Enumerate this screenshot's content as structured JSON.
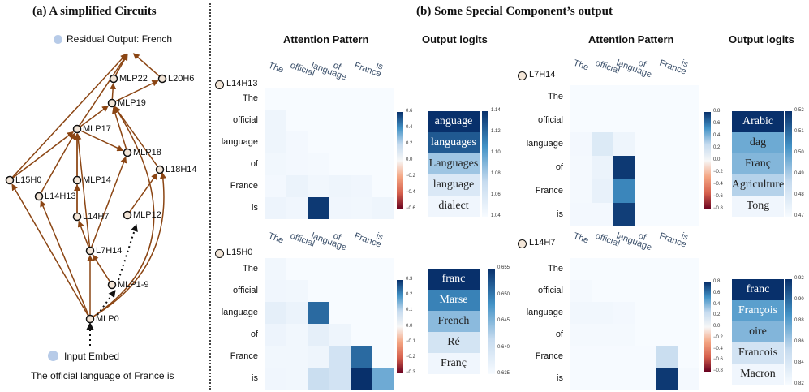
{
  "left": {
    "title": "(a)  A simplified Circuits",
    "residual_output": "Residual Output: French",
    "input_embed": "Input Embed",
    "sentence": "The official language of France is",
    "nodes": {
      "L15H0": "L15H0",
      "L14H13": "L14H13",
      "MLP17": "MLP17",
      "MLP14": "MLP14",
      "L14H7": "L14H7",
      "L7H14": "L7H14",
      "MLP19": "MLP19",
      "MLP22": "MLP22",
      "L20H6": "L20H6",
      "MLP18": "MLP18",
      "L18H14": "L18H14",
      "MLP12": "MLP12",
      "MLP1-9": "MLP1-9",
      "MLP0": "MLP0"
    }
  },
  "right": {
    "title": "(b)  Some Special Component’s output",
    "col_attention": "Attention Pattern",
    "col_logits": "Output logits",
    "tokens": [
      "The",
      "official",
      "language",
      "of",
      "France",
      "is"
    ],
    "panels": [
      {
        "component": "L14H13",
        "attn_max": 1.0,
        "attn": [
          [
            0,
            0,
            0,
            0,
            0,
            0
          ],
          [
            0.06,
            0,
            0,
            0,
            0,
            0
          ],
          [
            0.06,
            0.03,
            0,
            0,
            0,
            0
          ],
          [
            0.04,
            0.03,
            0.02,
            0,
            0,
            0
          ],
          [
            0.03,
            0.08,
            0.04,
            0.06,
            0.05,
            0
          ],
          [
            0.07,
            0.05,
            0.97,
            0.05,
            0.04,
            0.06
          ]
        ],
        "logits": {
          "tokens": [
            "anguage",
            "languages",
            "Languages",
            "language",
            "dialect"
          ],
          "values": [
            1.145,
            1.13,
            1.085,
            1.06,
            1.045
          ]
        },
        "attn_ticks": [
          "0.6",
          "0.4",
          "0.2",
          "0.0",
          "−0.2",
          "−0.4",
          "−0.6"
        ],
        "logit_ticks": [
          "1.14",
          "1.12",
          "1.10",
          "1.08",
          "1.06",
          "1.04"
        ]
      },
      {
        "component": "L7H14",
        "attn_max": 1.0,
        "attn": [
          [
            0,
            0,
            0,
            0,
            0,
            0
          ],
          [
            0,
            0,
            0,
            0,
            0,
            0
          ],
          [
            0.03,
            0.18,
            0.06,
            0,
            0,
            0
          ],
          [
            0.02,
            0.08,
            0.97,
            0,
            0,
            0
          ],
          [
            0.02,
            0.1,
            0.7,
            0,
            0,
            0
          ],
          [
            0.03,
            0.03,
            0.95,
            0,
            0,
            0
          ]
        ],
        "logits": {
          "tokens": [
            "Arabic",
            "dag",
            "Franç",
            "Agriculture",
            "Tong"
          ],
          "values": [
            0.525,
            0.5,
            0.497,
            0.49,
            0.472
          ]
        },
        "attn_ticks": [
          "0.8",
          "0.6",
          "0.4",
          "0.2",
          "0.0",
          "−0.2",
          "−0.4",
          "−0.6",
          "−0.8"
        ],
        "logit_ticks": [
          "0.52",
          "0.51",
          "0.50",
          "0.49",
          "0.48",
          "0.47"
        ]
      },
      {
        "component": "L15H0",
        "attn_max": 1.0,
        "attn": [
          [
            0.04,
            0,
            0,
            0,
            0,
            0
          ],
          [
            0.05,
            0.04,
            0,
            0,
            0,
            0
          ],
          [
            0.12,
            0.08,
            0.8,
            0,
            0,
            0
          ],
          [
            0.07,
            0.04,
            0.12,
            0.06,
            0,
            0
          ],
          [
            0.04,
            0.04,
            0.06,
            0.25,
            0.8,
            0
          ],
          [
            0.05,
            0.04,
            0.3,
            0.25,
            1.0,
            0.55
          ]
        ],
        "logits": {
          "tokens": [
            "franc",
            "Marse",
            "French",
            "Ré",
            "Franç"
          ],
          "values": [
            0.656,
            0.65,
            0.645,
            0.64,
            0.636
          ]
        },
        "attn_ticks": [
          "0.3",
          "0.2",
          "0.1",
          "0.0",
          "−0.1",
          "−0.2",
          "−0.3"
        ],
        "logit_ticks": [
          "0.655",
          "0.650",
          "0.645",
          "0.640",
          "0.635"
        ]
      },
      {
        "component": "L14H7",
        "attn_max": 1.0,
        "attn": [
          [
            0,
            0,
            0,
            0,
            0,
            0
          ],
          [
            0.02,
            0,
            0,
            0,
            0,
            0
          ],
          [
            0.04,
            0.04,
            0.03,
            0,
            0,
            0
          ],
          [
            0.02,
            0.02,
            0.02,
            0,
            0,
            0
          ],
          [
            0.01,
            0.01,
            0.01,
            0.01,
            0.3,
            0
          ],
          [
            0.01,
            0.01,
            0.01,
            0.01,
            0.97,
            0.02
          ]
        ],
        "logits": {
          "tokens": [
            "franc",
            "François",
            "oire",
            "Francois",
            "Macron"
          ],
          "values": [
            0.925,
            0.885,
            0.875,
            0.85,
            0.83
          ]
        },
        "attn_ticks": [
          "0.8",
          "0.6",
          "0.4",
          "0.2",
          "0.0",
          "−0.2",
          "−0.4",
          "−0.6",
          "−0.8"
        ],
        "logit_ticks": [
          "0.92",
          "0.90",
          "0.88",
          "0.86",
          "0.84",
          "0.82"
        ]
      }
    ]
  }
}
